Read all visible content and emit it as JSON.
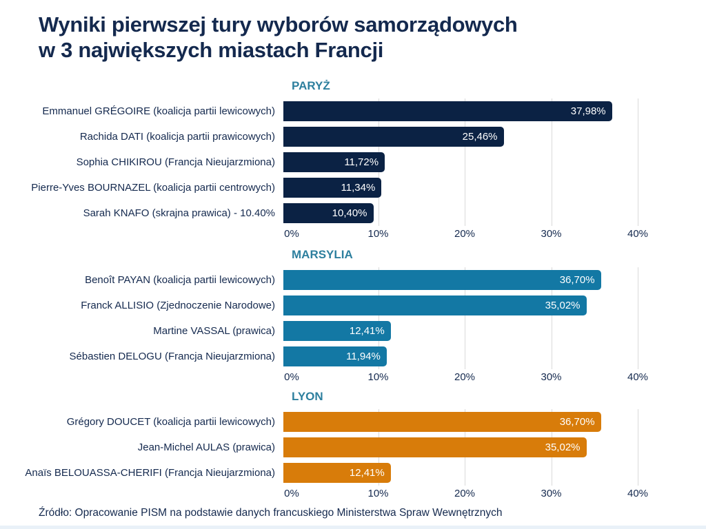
{
  "title": {
    "line1": "Wyniki pierwszej tury wyborów samorządowych",
    "line2": "w 3 największych miastach Francji"
  },
  "source_note": "Źródło: Opracowanie PISM na podstawie danych francuskiego Ministerstwa Spraw Wewnętrznych",
  "colors": {
    "title_text": "#14294e",
    "section_title_text": "#2d7f9e",
    "candidate_label_text": "#14294e",
    "axis_tick_text": "#14294e",
    "bar_value_text": "#ffffff",
    "gridline": "#d9d9d9",
    "paris_bar": "#0b2244",
    "marseille_bar": "#1378a4",
    "lyon_bar": "#d87c0a",
    "background": "#ffffff",
    "bottom_strip": "#e9f1f8"
  },
  "chart_data": [
    {
      "type": "bar",
      "orientation": "horizontal",
      "title": "PARYŻ",
      "categories": [
        "Emmanuel GRÉGOIRE (koalicja partii lewicowych)",
        "Rachida DATI (koalicja partii prawicowych)",
        "Sophia CHIKIROU (Francja Nieujarzmiona)",
        "Pierre-Yves BOURNAZEL (koalicja partii centrowych)",
        "Sarah KNAFO (skrajna prawica) - 10.40%"
      ],
      "values": [
        37.98,
        25.46,
        11.72,
        11.34,
        10.4
      ],
      "value_labels": [
        "37,98%",
        "25,46%",
        "11,72%",
        "11,34%",
        "10,40%"
      ],
      "bar_color": "#0b2244",
      "xlim": [
        0,
        40
      ],
      "x_ticks": [
        "0%",
        "10%",
        "20%",
        "30%",
        "40%"
      ],
      "grid": true,
      "legend": false
    },
    {
      "type": "bar",
      "orientation": "horizontal",
      "title": "MARSYLIA",
      "categories": [
        "Benoît PAYAN (koalicja partii lewicowych)",
        "Franck ALLISIO (Zjednoczenie Narodowe)",
        "Martine VASSAL (prawica)",
        "Sébastien DELOGU (Francja Nieujarzmiona)"
      ],
      "values": [
        36.7,
        35.02,
        12.41,
        11.94
      ],
      "value_labels": [
        "36,70%",
        "35,02%",
        "12,41%",
        "11,94%"
      ],
      "bar_color": "#1378a4",
      "xlim": [
        0,
        40
      ],
      "x_ticks": [
        "0%",
        "10%",
        "20%",
        "30%",
        "40%"
      ],
      "grid": true,
      "legend": false
    },
    {
      "type": "bar",
      "orientation": "horizontal",
      "title": "LYON",
      "categories": [
        "Grégory DOUCET (koalicja partii lewicowych)",
        "Jean-Michel AULAS (prawica)",
        "Anaïs BELOUASSA-CHERIFI (Francja Nieujarzmiona)"
      ],
      "values": [
        36.7,
        35.02,
        12.41
      ],
      "value_labels": [
        "36,70%",
        "35,02%",
        "12,41%"
      ],
      "bar_color": "#d87c0a",
      "xlim": [
        0,
        40
      ],
      "x_ticks": [
        "0%",
        "10%",
        "20%",
        "30%",
        "40%"
      ],
      "grid": true,
      "legend": false
    }
  ]
}
